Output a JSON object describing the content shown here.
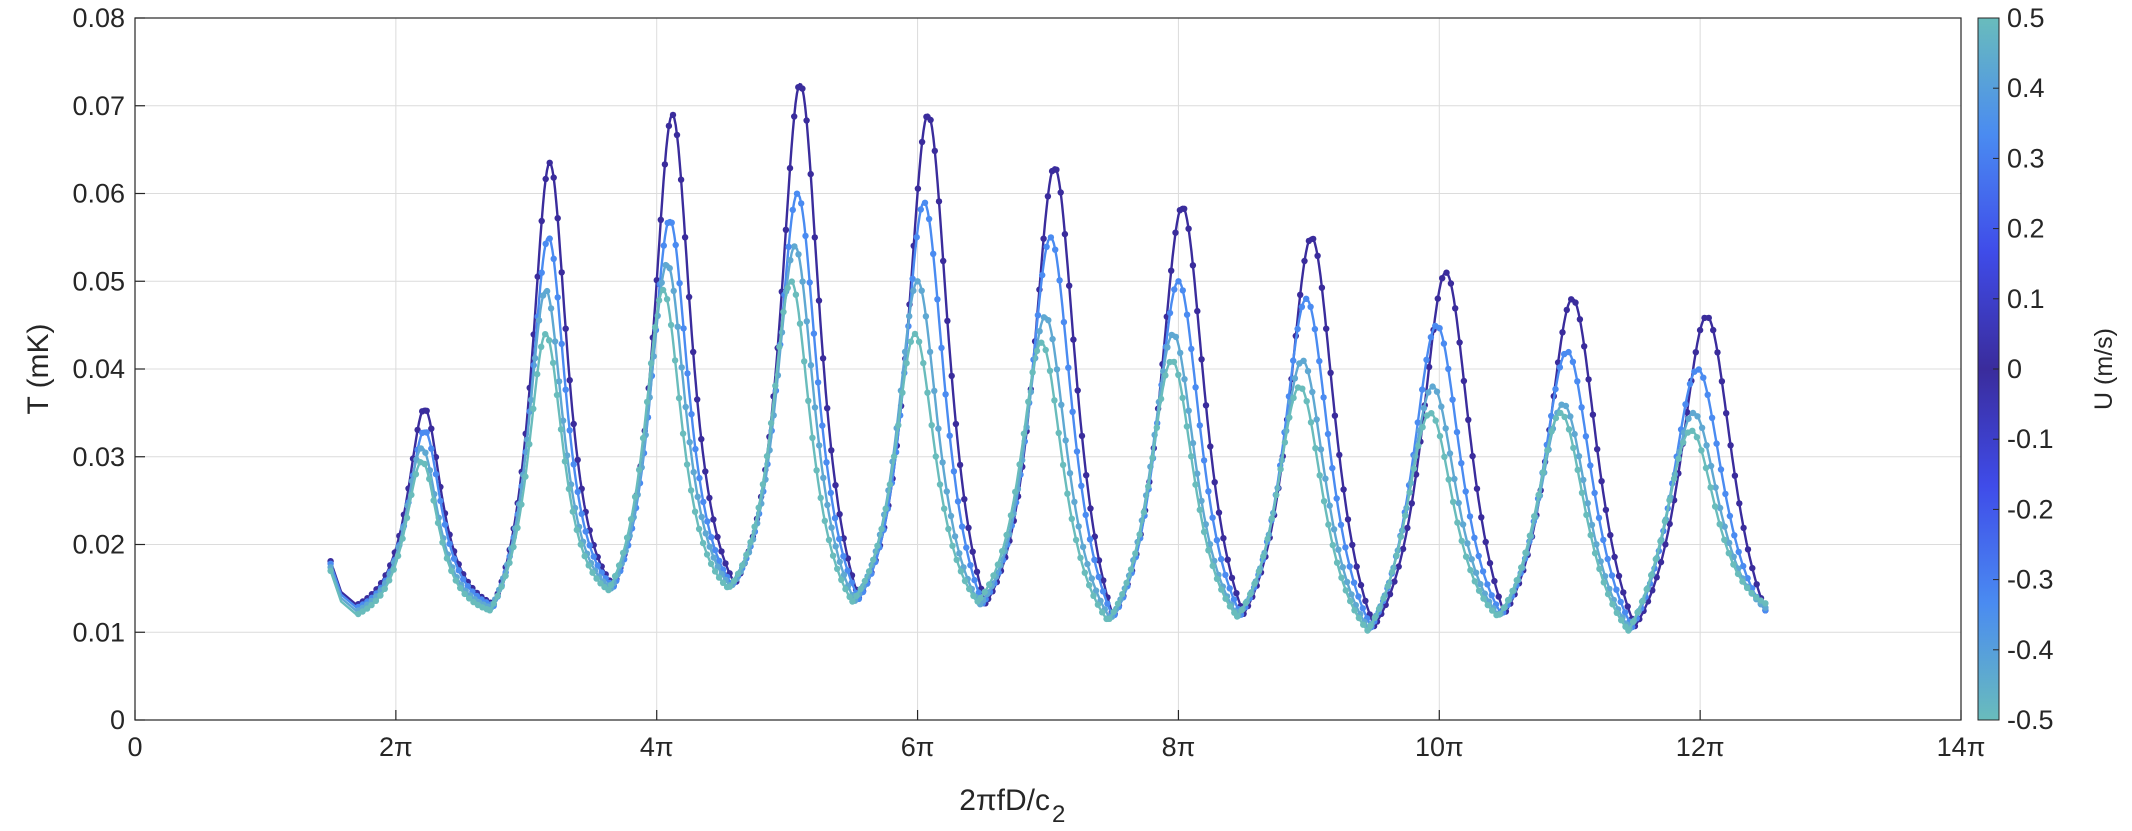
{
  "chart_data": {
    "type": "line",
    "xlabel": "2πfD/c",
    "xlabel_sub": "2",
    "ylabel": "T (mK)",
    "xlim": [
      0,
      14
    ],
    "ylim": [
      0,
      0.08
    ],
    "x_unit": "π",
    "x_ticks": [
      0,
      2,
      4,
      6,
      8,
      10,
      12,
      14
    ],
    "x_tick_labels": [
      "0",
      "2π",
      "4π",
      "6π",
      "8π",
      "10π",
      "12π",
      "14π"
    ],
    "y_ticks": [
      0,
      0.01,
      0.02,
      0.03,
      0.04,
      0.05,
      0.06,
      0.07,
      0.08
    ],
    "y_tick_labels": [
      "0",
      "0.01",
      "0.02",
      "0.03",
      "0.04",
      "0.05",
      "0.06",
      "0.07",
      "0.08"
    ],
    "grid": true,
    "colorbar": {
      "label": "U (m/s)",
      "range": [
        -0.5,
        0.5
      ],
      "ticks": [
        0.5,
        0.4,
        0.3,
        0.2,
        0.1,
        0,
        -0.1,
        -0.2,
        -0.3,
        -0.4,
        -0.5
      ],
      "tick_labels": [
        "0.5",
        "0.4",
        "0.3",
        "0.2",
        "0.1",
        "0",
        "-0.1",
        "-0.2",
        "-0.3",
        "-0.4",
        "-0.5"
      ],
      "colors": [
        "#69bcbc",
        "#4a8bf1",
        "#3f4ce9",
        "#3a2c9c",
        "#3f4ce9",
        "#4a8bf1",
        "#69bcbc"
      ]
    },
    "series": [
      {
        "color": "#3a2c9c",
        "x_range": [
          1.5,
          12.5
        ],
        "peaks": [
          [
            2.22,
            0.0355
          ],
          [
            3.18,
            0.0635
          ],
          [
            4.12,
            0.069
          ],
          [
            5.1,
            0.0725
          ],
          [
            6.08,
            0.069
          ],
          [
            7.05,
            0.063
          ],
          [
            8.03,
            0.0585
          ],
          [
            9.02,
            0.055
          ],
          [
            10.05,
            0.051
          ],
          [
            11.02,
            0.048
          ],
          [
            12.05,
            0.046
          ]
        ],
        "troughs": [
          [
            1.7,
            0.0131
          ],
          [
            2.75,
            0.0132
          ],
          [
            3.67,
            0.0153
          ],
          [
            4.6,
            0.0155
          ],
          [
            5.55,
            0.0139
          ],
          [
            6.52,
            0.0133
          ],
          [
            7.5,
            0.0118
          ],
          [
            8.5,
            0.0121
          ],
          [
            9.5,
            0.0107
          ],
          [
            10.5,
            0.0121
          ],
          [
            11.5,
            0.0107
          ],
          [
            12.5,
            0.0125
          ]
        ]
      },
      {
        "color": "#4a8bf1",
        "x_range": [
          1.5,
          12.5
        ],
        "peaks": [
          [
            2.22,
            0.033
          ],
          [
            3.17,
            0.055
          ],
          [
            4.1,
            0.057
          ],
          [
            5.08,
            0.06
          ],
          [
            6.05,
            0.059
          ],
          [
            7.02,
            0.055
          ],
          [
            8.0,
            0.05
          ],
          [
            8.98,
            0.048
          ],
          [
            9.98,
            0.045
          ],
          [
            10.98,
            0.042
          ],
          [
            11.98,
            0.04
          ]
        ],
        "troughs": [
          [
            1.7,
            0.0128
          ],
          [
            2.75,
            0.013
          ],
          [
            3.67,
            0.0152
          ],
          [
            4.58,
            0.0154
          ],
          [
            5.55,
            0.0138
          ],
          [
            6.5,
            0.0133
          ],
          [
            7.5,
            0.0117
          ],
          [
            8.48,
            0.012
          ],
          [
            9.48,
            0.0106
          ],
          [
            10.48,
            0.012
          ],
          [
            11.48,
            0.0106
          ],
          [
            12.5,
            0.0125
          ]
        ]
      },
      {
        "color": "#5fa8d2",
        "x_range": [
          1.5,
          12.5
        ],
        "peaks": [
          [
            2.2,
            0.031
          ],
          [
            3.15,
            0.049
          ],
          [
            4.08,
            0.052
          ],
          [
            5.06,
            0.054
          ],
          [
            6.0,
            0.05
          ],
          [
            6.98,
            0.046
          ],
          [
            7.96,
            0.044
          ],
          [
            8.95,
            0.041
          ],
          [
            9.95,
            0.038
          ],
          [
            10.95,
            0.036
          ],
          [
            11.95,
            0.035
          ]
        ],
        "troughs": [
          [
            1.7,
            0.0124
          ],
          [
            2.73,
            0.0128
          ],
          [
            3.65,
            0.015
          ],
          [
            4.57,
            0.0152
          ],
          [
            5.52,
            0.0136
          ],
          [
            6.48,
            0.0132
          ],
          [
            7.48,
            0.0115
          ],
          [
            8.46,
            0.0119
          ],
          [
            9.46,
            0.0104
          ],
          [
            10.46,
            0.0119
          ],
          [
            11.46,
            0.0104
          ],
          [
            12.5,
            0.0128
          ]
        ]
      },
      {
        "color": "#69bcbc",
        "x_range": [
          1.5,
          12.5
        ],
        "peaks": [
          [
            2.2,
            0.0295
          ],
          [
            3.15,
            0.044
          ],
          [
            4.05,
            0.049
          ],
          [
            5.03,
            0.05
          ],
          [
            5.98,
            0.044
          ],
          [
            6.95,
            0.043
          ],
          [
            7.95,
            0.041
          ],
          [
            8.93,
            0.038
          ],
          [
            9.93,
            0.035
          ],
          [
            10.93,
            0.035
          ],
          [
            11.93,
            0.033
          ]
        ],
        "troughs": [
          [
            1.7,
            0.012
          ],
          [
            2.72,
            0.0125
          ],
          [
            3.63,
            0.0148
          ],
          [
            4.55,
            0.015
          ],
          [
            5.5,
            0.0135
          ],
          [
            6.46,
            0.0135
          ],
          [
            7.46,
            0.0113
          ],
          [
            8.45,
            0.0118
          ],
          [
            9.45,
            0.0102
          ],
          [
            10.45,
            0.0118
          ],
          [
            11.45,
            0.0102
          ],
          [
            12.5,
            0.0133
          ]
        ]
      }
    ]
  }
}
